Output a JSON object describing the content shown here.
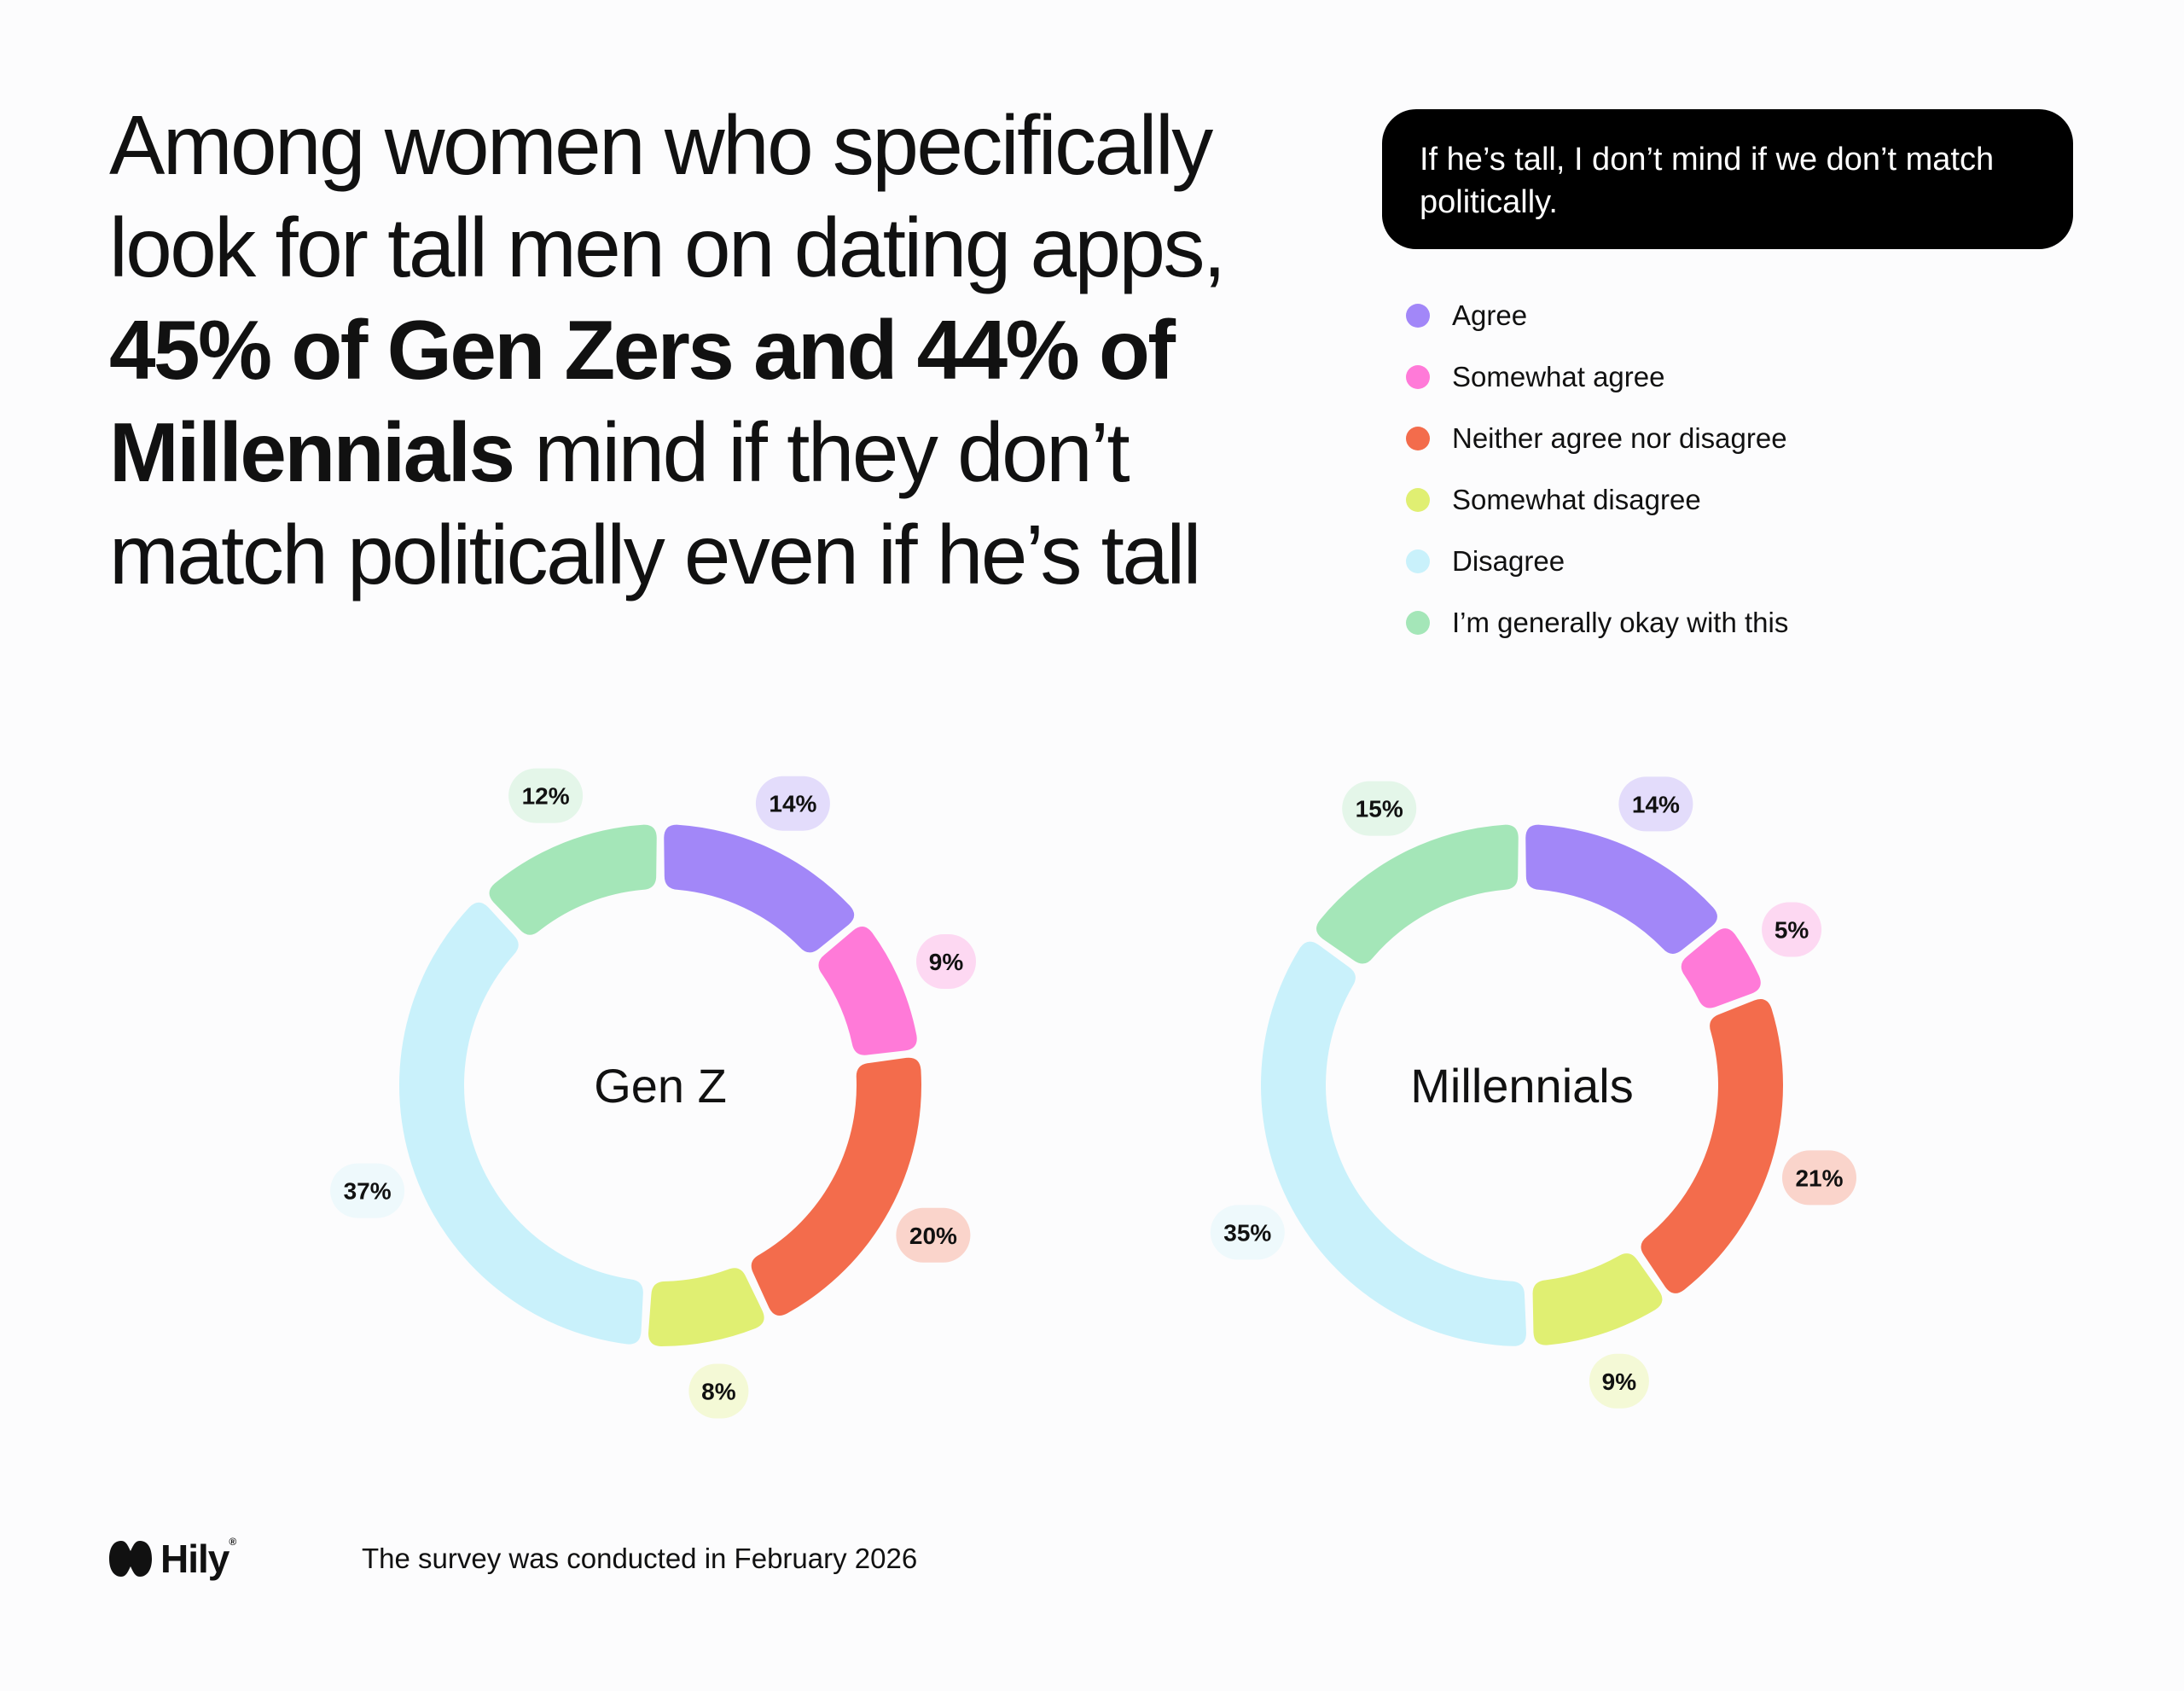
{
  "headline": {
    "part1": "Among women who specifically look for tall men on dating apps, ",
    "bold": "45% of Gen Zers and 44% of Millennials",
    "part2": " mind if they don’t match politically even if he’s tall"
  },
  "question": "If he’s tall, I don’t mind if we don’t match politically.",
  "legend": [
    {
      "label": "Agree",
      "color": "#a287f8"
    },
    {
      "label": "Somewhat agree",
      "color": "#ff7ad8"
    },
    {
      "label": "Neither agree nor disagree",
      "color": "#f36c4c"
    },
    {
      "label": "Somewhat disagree",
      "color": "#e0ef72"
    },
    {
      "label": "Disagree",
      "color": "#c9f1fb"
    },
    {
      "label": "I’m generally okay with this",
      "color": "#a4e6b8"
    }
  ],
  "chart_data": [
    {
      "type": "pie",
      "title": "Gen Z",
      "categories": [
        "Agree",
        "Somewhat agree",
        "Neither agree nor disagree",
        "Somewhat disagree",
        "Disagree",
        "I’m generally okay with this"
      ],
      "values": [
        14,
        9,
        20,
        8,
        37,
        12
      ],
      "labels": [
        "14%",
        "9%",
        "20%",
        "8%",
        "37%",
        "12%"
      ]
    },
    {
      "type": "pie",
      "title": "Millennials",
      "categories": [
        "Agree",
        "Somewhat agree",
        "Neither agree nor disagree",
        "Somewhat disagree",
        "Disagree",
        "I’m generally okay with this"
      ],
      "values": [
        14,
        5,
        21,
        9,
        35,
        15
      ],
      "labels": [
        "14%",
        "5%",
        "21%",
        "9%",
        "35%",
        "15%"
      ]
    }
  ],
  "footer": {
    "logo": "Hily",
    "logo_mark": "®",
    "note": "The survey was conducted in February 2026"
  }
}
